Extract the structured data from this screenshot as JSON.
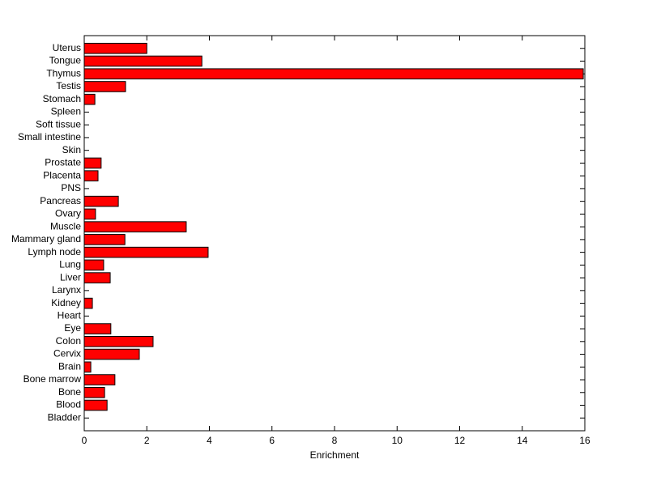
{
  "chart_data": {
    "type": "barh",
    "xlabel": "Enrichment",
    "categories": [
      "Bladder",
      "Blood",
      "Bone",
      "Bone marrow",
      "Brain",
      "Cervix",
      "Colon",
      "Eye",
      "Heart",
      "Kidney",
      "Larynx",
      "Liver",
      "Lung",
      "Lymph node",
      "Mammary gland",
      "Muscle",
      "Ovary",
      "Pancreas",
      "PNS",
      "Placenta",
      "Prostate",
      "Skin",
      "Small intestine",
      "Soft tissue",
      "Spleen",
      "Stomach",
      "Testis",
      "Thymus",
      "Tongue",
      "Uterus"
    ],
    "values": [
      0,
      0.73,
      0.65,
      0.98,
      0.21,
      1.76,
      2.2,
      0.85,
      0,
      0.26,
      0,
      0.83,
      0.62,
      3.96,
      1.3,
      3.26,
      0.36,
      1.09,
      0,
      0.44,
      0.54,
      0,
      0,
      0,
      0,
      0.34,
      1.32,
      15.95,
      3.76,
      2.0
    ],
    "color": "#ff0000",
    "xlim": [
      0,
      16
    ],
    "xticks": [
      0,
      2,
      4,
      6,
      8,
      10,
      12,
      14,
      16
    ]
  }
}
